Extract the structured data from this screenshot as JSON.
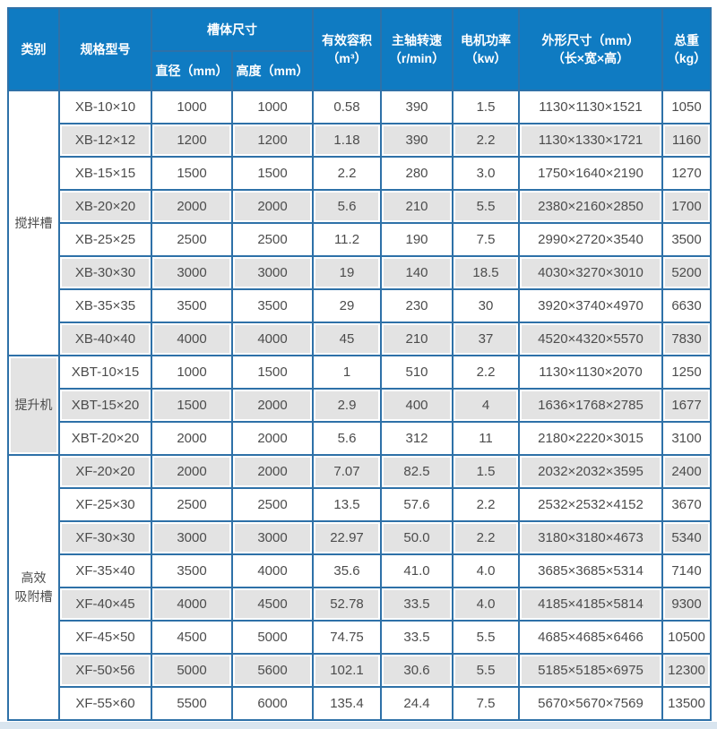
{
  "colors": {
    "header_bg": "#0f7bc2",
    "header_text": "#ffffff",
    "grid_border": "#2e71a8",
    "row_alt_bg": "#e3e3e3",
    "row_bg": "#ffffff",
    "cell_text": "#4c4c4c",
    "bottom_strip": "#d9e5ef"
  },
  "table": {
    "headers": {
      "category": "类别",
      "model": "规格型号",
      "tank_size": "槽体尺寸",
      "diameter": "直径（mm）",
      "height": "高度（mm）",
      "volume": "有效容积\n（m³）",
      "speed": "主轴转速\n（r/min）",
      "power": "电机功率\n（kw）",
      "dimensions": "外形尺寸（mm）\n（长×宽×高）",
      "weight": "总重\n（kg）"
    },
    "column_cell_names": [
      "model-cell",
      "diameter-cell",
      "height-cell",
      "volume-cell",
      "speed-cell",
      "power-cell",
      "dimensions-cell",
      "weight-cell"
    ],
    "groups": [
      {
        "category": "搅拌槽",
        "shaded": false,
        "rows": [
          [
            "XB-10×10",
            "1000",
            "1000",
            "0.58",
            "390",
            "1.5",
            "1130×1130×1521",
            "1050"
          ],
          [
            "XB-12×12",
            "1200",
            "1200",
            "1.18",
            "390",
            "2.2",
            "1130×1330×1721",
            "1160"
          ],
          [
            "XB-15×15",
            "1500",
            "1500",
            "2.2",
            "280",
            "3.0",
            "1750×1640×2190",
            "1270"
          ],
          [
            "XB-20×20",
            "2000",
            "2000",
            "5.6",
            "210",
            "5.5",
            "2380×2160×2850",
            "1700"
          ],
          [
            "XB-25×25",
            "2500",
            "2500",
            "11.2",
            "190",
            "7.5",
            "2990×2720×3540",
            "3500"
          ],
          [
            "XB-30×30",
            "3000",
            "3000",
            "19",
            "140",
            "18.5",
            "4030×3270×3010",
            "5200"
          ],
          [
            "XB-35×35",
            "3500",
            "3500",
            "29",
            "230",
            "30",
            "3920×3740×4970",
            "6630"
          ],
          [
            "XB-40×40",
            "4000",
            "4000",
            "45",
            "210",
            "37",
            "4520×4320×5570",
            "7830"
          ]
        ]
      },
      {
        "category": "提升机",
        "shaded": true,
        "rows": [
          [
            "XBT-10×15",
            "1000",
            "1500",
            "1",
            "510",
            "2.2",
            "1130×1130×2070",
            "1250"
          ],
          [
            "XBT-15×20",
            "1500",
            "2000",
            "2.9",
            "400",
            "4",
            "1636×1768×2785",
            "1677"
          ],
          [
            "XBT-20×20",
            "2000",
            "2000",
            "5.6",
            "312",
            "11",
            "2180×2220×3015",
            "3100"
          ]
        ]
      },
      {
        "category": "高效\n吸附槽",
        "shaded": false,
        "rows": [
          [
            "XF-20×20",
            "2000",
            "2000",
            "7.07",
            "82.5",
            "1.5",
            "2032×2032×3595",
            "2400"
          ],
          [
            "XF-25×30",
            "2500",
            "2500",
            "13.5",
            "57.6",
            "2.2",
            "2532×2532×4152",
            "3670"
          ],
          [
            "XF-30×30",
            "3000",
            "3000",
            "22.97",
            "50.0",
            "2.2",
            "3180×3180×4673",
            "5340"
          ],
          [
            "XF-35×40",
            "3500",
            "4000",
            "35.6",
            "41.0",
            "4.0",
            "3685×3685×5314",
            "7140"
          ],
          [
            "XF-40×45",
            "4000",
            "4500",
            "52.78",
            "33.5",
            "4.0",
            "4185×4185×5814",
            "9300"
          ],
          [
            "XF-45×50",
            "4500",
            "5000",
            "74.75",
            "33.5",
            "5.5",
            "4685×4685×6466",
            "10500"
          ],
          [
            "XF-50×56",
            "5000",
            "5600",
            "102.1",
            "30.6",
            "5.5",
            "5185×5185×6975",
            "12300"
          ],
          [
            "XF-55×60",
            "5500",
            "6000",
            "135.4",
            "24.4",
            "7.5",
            "5670×5670×7569",
            "13500"
          ]
        ]
      }
    ]
  }
}
